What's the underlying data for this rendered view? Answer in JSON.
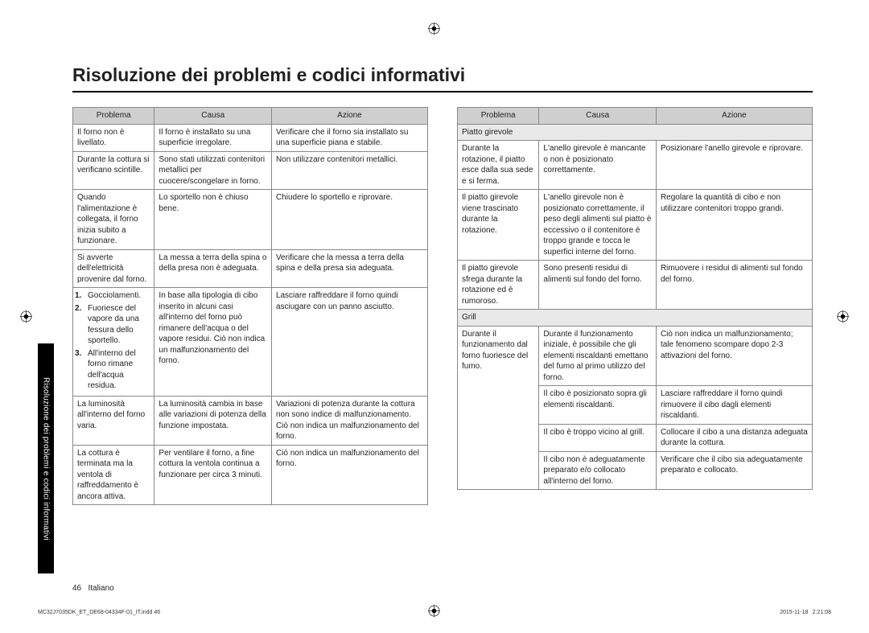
{
  "title": "Risoluzione dei problemi e codici informativi",
  "headers": {
    "problema": "Problema",
    "causa": "Causa",
    "azione": "Azione"
  },
  "side_tab": "Risoluzione dei problemi e codici informativi",
  "footer": {
    "page": "46",
    "lang": "Italiano"
  },
  "indd": "MC32J7035DK_ET_DE68-04334F-01_IT.indd   46",
  "timestamp": "2015-11-18     2:21:08",
  "left_rows": [
    {
      "p": "Il forno non è livellato.",
      "c": "Il forno è installato su una superficie irregolare.",
      "a": "Verificare che il forno sia installato su una superficie piana e stabile."
    },
    {
      "p": "Durante la cottura si verificano scintille.",
      "c": "Sono stati utilizzati contenitori metallici per cuocere/scongelare in forno.",
      "a": "Non utilizzare contenitori metallici."
    },
    {
      "p": "Quando l'alimentazione è collegata, il forno inizia subito a funzionare.",
      "c": "Lo sportello non è chiuso bene.",
      "a": "Chiudere lo sportello e riprovare."
    },
    {
      "p": "Si avverte dell'elettricità provenire dal forno.",
      "c": "La messa a terra della spina o della presa non è adeguata.",
      "a": "Verificare che la messa a terra della spina e della presa sia adeguata."
    },
    {
      "p_list": [
        {
          "n": "1.",
          "t": "Gocciolamenti."
        },
        {
          "n": "2.",
          "t": "Fuoriesce del vapore da una fessura dello sportello."
        },
        {
          "n": "3.",
          "t": "All'interno del forno rimane dell'acqua residua."
        }
      ],
      "c": "In base alla tipologia di cibo inserito in alcuni casi all'interno del forno può rimanere dell'acqua o del vapore residui. Ciò non indica un malfunzionamento del forno.",
      "a": "Lasciare raffreddare il forno quindi asciugare con un panno asciutto."
    },
    {
      "p": "La luminosità all'interno del forno varia.",
      "c": "La luminosità cambia in base alle variazioni di potenza della funzione impostata.",
      "a": "Variazioni di potenza durante la cottura non sono indice di malfunzionamento. Ciò non indica un malfunzionamento del forno."
    },
    {
      "p": "La cottura è terminata ma la ventola di raffreddamento è ancora attiva.",
      "c": "Per ventilare il forno, a fine cottura la ventola continua a funzionare per circa 3 minuti.",
      "a": "Ciò non indica un malfunzionamento del forno."
    }
  ],
  "right_sections": [
    {
      "header": "Piatto girevole",
      "rows": [
        {
          "p": "Durante la rotazione, il piatto esce dalla sua sede e si ferma.",
          "c": "L'anello girevole è mancante o non è posizionato correttamente.",
          "a": "Posizionare l'anello girevole e riprovare."
        },
        {
          "p": "Il piatto girevole viene trascinato durante la rotazione.",
          "c": "L'anello girevole non è posizionato correttamente, il peso degli alimenti sul piatto è eccessivo o il contenitore è troppo grande e tocca le superfici interne del forno.",
          "a": "Regolare la quantità di cibo e non utilizzare contenitori troppo grandi."
        },
        {
          "p": "Il piatto girevole sfrega durante la rotazione ed è rumoroso.",
          "c": "Sono presenti residui di alimenti sul fondo del forno.",
          "a": "Rimuovere i residui di alimenti sul fondo del forno."
        }
      ]
    },
    {
      "header": "Grill",
      "rows": [
        {
          "p": "Durante il funzionamento dal forno fuoriesce del fumo.",
          "c": "Durante il funzionamento iniziale, è possibile che gli elementi riscaldanti emettano del fumo al primo utilizzo del forno.",
          "a": "Ciò non indica un malfunzionamento; tale fenomeno scompare dopo 2-3 attivazioni del forno."
        },
        {
          "p": "",
          "c": "Il cibo è posizionato sopra gli elementi riscaldanti.",
          "a": "Lasciare raffreddare il forno quindi rimuovere il cibo dagli elementi riscaldanti."
        },
        {
          "p": "",
          "c": "Il cibo è troppo vicino al grill.",
          "a": "Collocare il cibo a una distanza adeguata durante la cottura."
        },
        {
          "p": "",
          "c": "Il cibo non è adeguatamente preparato e/o collocato all'interno del forno.",
          "a": "Verificare che il cibo sia adeguatamente preparato e collocato."
        }
      ]
    }
  ]
}
